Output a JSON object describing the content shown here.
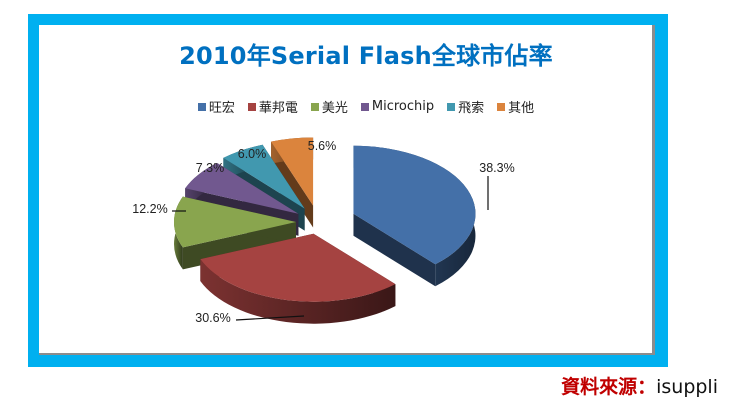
{
  "chart_data": {
    "type": "pie",
    "subtype": "3d-exploded",
    "title": "2010年Serial Flash全球市佔率",
    "categories": [
      "旺宏",
      "華邦電",
      "美光",
      "Microchip",
      "飛索",
      "其他"
    ],
    "values": [
      38.3,
      30.6,
      12.2,
      7.3,
      6.0,
      5.6
    ],
    "labels": [
      "38.3%",
      "30.6%",
      "12.2%",
      "7.3%",
      "6.0%",
      "5.6%"
    ],
    "colors": [
      "#4470a8",
      "#a54341",
      "#89a54e",
      "#71588f",
      "#4198af",
      "#db843d"
    ],
    "legend_position": "top"
  },
  "title": "2010年Serial Flash全球市佔率",
  "legend": [
    {
      "label": "旺宏",
      "color": "#4470a8"
    },
    {
      "label": "華邦電",
      "color": "#a54341"
    },
    {
      "label": "美光",
      "color": "#89a54e"
    },
    {
      "label": "Microchip",
      "color": "#71588f"
    },
    {
      "label": "飛索",
      "color": "#4198af"
    },
    {
      "label": "其他",
      "color": "#db843d"
    }
  ],
  "source": {
    "label": "資料來源：",
    "value": "isuppli"
  },
  "frame_color": "#00b0f0",
  "title_color": "#0070c0",
  "source_label_color": "#c00000"
}
